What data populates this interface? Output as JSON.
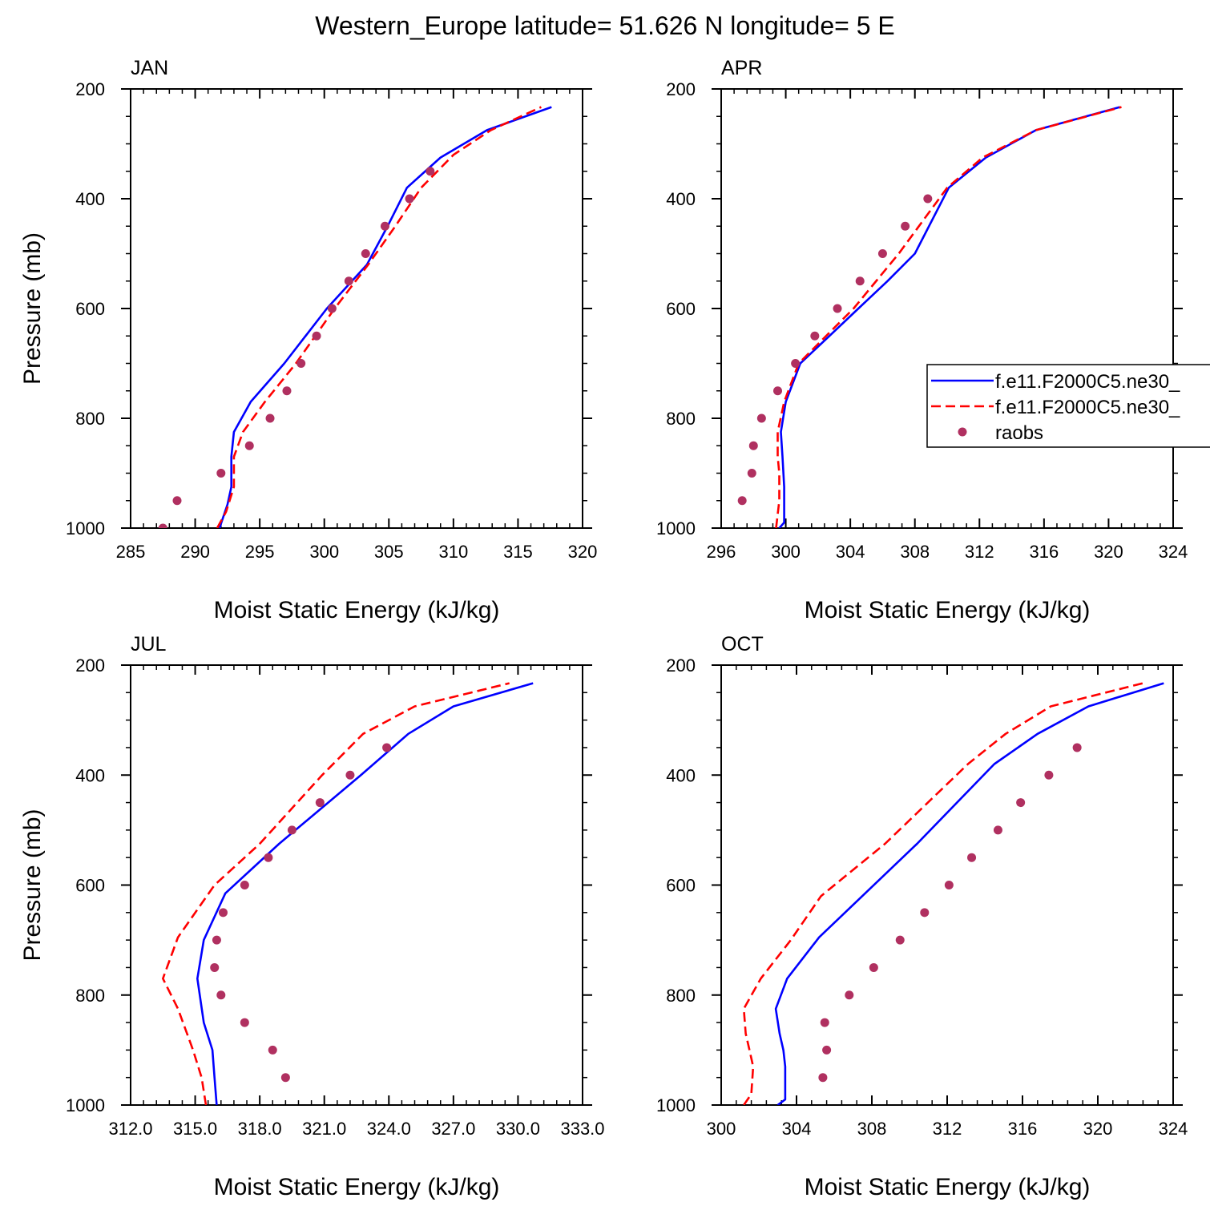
{
  "figure": {
    "title": "Western_Europe  latitude= 51.626 N longitude= 5 E",
    "colors": {
      "model_1": "#0000ff",
      "model_2": "#ff0000",
      "raobs": "#b03060"
    }
  },
  "chart_data": [
    {
      "type": "line",
      "panel": "JAN",
      "xlabel": "Moist Static Energy (kJ/kg)",
      "ylabel": "Pressure (mb)",
      "xlim": [
        285,
        320
      ],
      "ylim": [
        1000,
        200
      ],
      "y_inverted": true,
      "xticks": [
        "285",
        "290",
        "295",
        "300",
        "305",
        "310",
        "315",
        "320"
      ],
      "yticks": [
        "200",
        "400",
        "600",
        "800",
        "1000"
      ],
      "legend": null,
      "series": [
        {
          "name": "f.e11.F2000C5.ne30_",
          "style": "solid",
          "color": "#0000ff",
          "points": [
            [
              291.9,
              1000
            ],
            [
              292.0,
              992
            ],
            [
              292.5,
              957
            ],
            [
              292.8,
              925
            ],
            [
              292.8,
              870
            ],
            [
              293.0,
              825
            ],
            [
              294.3,
              770
            ],
            [
              296.9,
              700
            ],
            [
              300.2,
              600
            ],
            [
              303.3,
              520
            ],
            [
              304.9,
              450
            ],
            [
              306.4,
              380
            ],
            [
              309.0,
              325
            ],
            [
              312.6,
              275
            ],
            [
              317.6,
              233
            ]
          ]
        },
        {
          "name": "f.e11.F2000C5.ne30_",
          "style": "dashed",
          "color": "#ff0000",
          "points": [
            [
              291.7,
              1000
            ],
            [
              292.4,
              970
            ],
            [
              293.0,
              925
            ],
            [
              293.0,
              870
            ],
            [
              293.7,
              825
            ],
            [
              295.4,
              770
            ],
            [
              297.8,
              700
            ],
            [
              300.8,
              600
            ],
            [
              303.4,
              520
            ],
            [
              305.5,
              450
            ],
            [
              307.5,
              380
            ],
            [
              310.0,
              320
            ],
            [
              312.9,
              275
            ],
            [
              316.8,
              233
            ]
          ]
        },
        {
          "name": "raobs",
          "style": "markers",
          "color": "#b03060",
          "points": [
            [
              287.5,
              1000
            ],
            [
              288.6,
              950
            ],
            [
              292.0,
              900
            ],
            [
              294.2,
              850
            ],
            [
              295.8,
              800
            ],
            [
              297.1,
              750
            ],
            [
              298.2,
              700
            ],
            [
              299.4,
              650
            ],
            [
              300.6,
              600
            ],
            [
              301.9,
              550
            ],
            [
              303.2,
              500
            ],
            [
              304.7,
              450
            ],
            [
              306.6,
              400
            ],
            [
              308.2,
              350
            ]
          ]
        }
      ]
    },
    {
      "type": "line",
      "panel": "APR",
      "xlabel": "Moist Static Energy (kJ/kg)",
      "ylabel": "",
      "xlim": [
        296,
        324
      ],
      "ylim": [
        1000,
        200
      ],
      "y_inverted": true,
      "xticks": [
        "296",
        "300",
        "304",
        "308",
        "312",
        "316",
        "320",
        "324"
      ],
      "yticks": [
        "200",
        "400",
        "600",
        "800",
        "1000"
      ],
      "legend": {
        "placement": "right-middle",
        "entries": [
          {
            "label": "f.e11.F2000C5.ne30_",
            "style": "solid",
            "color": "#0000ff"
          },
          {
            "label": "f.e11.F2000C5.ne30_",
            "style": "dashed",
            "color": "#ff0000"
          },
          {
            "label": "raobs",
            "style": "markers",
            "color": "#b03060"
          }
        ]
      },
      "series": [
        {
          "name": "f.e11.F2000C5.ne30_",
          "style": "solid",
          "color": "#0000ff",
          "points": [
            [
              299.6,
              1000
            ],
            [
              299.9,
              990
            ],
            [
              299.9,
              925
            ],
            [
              299.8,
              870
            ],
            [
              299.7,
              825
            ],
            [
              300.0,
              770
            ],
            [
              300.9,
              700
            ],
            [
              302.7,
              650
            ],
            [
              304.5,
              600
            ],
            [
              306.3,
              550
            ],
            [
              308.0,
              500
            ],
            [
              310.1,
              380
            ],
            [
              312.4,
              325
            ],
            [
              315.5,
              275
            ],
            [
              320.7,
              233
            ]
          ]
        },
        {
          "name": "f.e11.F2000C5.ne30_",
          "style": "dashed",
          "color": "#ff0000",
          "points": [
            [
              299.4,
              1000
            ],
            [
              299.6,
              950
            ],
            [
              299.6,
              900
            ],
            [
              299.5,
              870
            ],
            [
              299.5,
              825
            ],
            [
              299.9,
              770
            ],
            [
              300.8,
              700
            ],
            [
              302.5,
              650
            ],
            [
              304.2,
              600
            ],
            [
              307.0,
              500
            ],
            [
              310.0,
              380
            ],
            [
              312.2,
              325
            ],
            [
              315.5,
              275
            ],
            [
              320.8,
              233
            ]
          ]
        },
        {
          "name": "raobs",
          "style": "markers",
          "color": "#b03060",
          "points": [
            [
              297.3,
              950
            ],
            [
              297.9,
              900
            ],
            [
              298.0,
              850
            ],
            [
              298.5,
              800
            ],
            [
              299.5,
              750
            ],
            [
              300.6,
              700
            ],
            [
              301.8,
              650
            ],
            [
              303.2,
              600
            ],
            [
              304.6,
              550
            ],
            [
              306.0,
              500
            ],
            [
              307.4,
              450
            ],
            [
              308.8,
              400
            ]
          ]
        }
      ]
    },
    {
      "type": "line",
      "panel": "JUL",
      "xlabel": "Moist Static Energy (kJ/kg)",
      "ylabel": "Pressure (mb)",
      "xlim": [
        312,
        333
      ],
      "ylim": [
        1000,
        200
      ],
      "y_inverted": true,
      "xticks": [
        "312.0",
        "315.0",
        "318.0",
        "321.0",
        "324.0",
        "327.0",
        "330.0",
        "333.0"
      ],
      "yticks": [
        "200",
        "400",
        "600",
        "800",
        "1000"
      ],
      "legend": null,
      "series": [
        {
          "name": "f.e11.F2000C5.ne30_",
          "style": "solid",
          "color": "#0000ff",
          "points": [
            [
              316.0,
              1000
            ],
            [
              315.9,
              950
            ],
            [
              315.8,
              900
            ],
            [
              315.4,
              850
            ],
            [
              315.1,
              770
            ],
            [
              315.4,
              700
            ],
            [
              316.4,
              615
            ],
            [
              318.9,
              525
            ],
            [
              322.7,
              400
            ],
            [
              324.9,
              325
            ],
            [
              327.0,
              275
            ],
            [
              330.7,
              233
            ]
          ]
        },
        {
          "name": "f.e11.F2000C5.ne30_",
          "style": "dashed",
          "color": "#ff0000",
          "points": [
            [
              315.5,
              1000
            ],
            [
              315.3,
              950
            ],
            [
              314.9,
              900
            ],
            [
              314.2,
              825
            ],
            [
              313.5,
              770
            ],
            [
              314.2,
              695
            ],
            [
              315.9,
              600
            ],
            [
              318.0,
              525
            ],
            [
              320.9,
              400
            ],
            [
              322.8,
              325
            ],
            [
              325.2,
              275
            ],
            [
              329.6,
              233
            ]
          ]
        },
        {
          "name": "raobs",
          "style": "markers",
          "color": "#b03060",
          "points": [
            [
              319.2,
              950
            ],
            [
              318.6,
              900
            ],
            [
              317.3,
              850
            ],
            [
              316.2,
              800
            ],
            [
              315.9,
              750
            ],
            [
              316.0,
              700
            ],
            [
              316.3,
              650
            ],
            [
              317.3,
              600
            ],
            [
              318.4,
              550
            ],
            [
              319.5,
              500
            ],
            [
              320.8,
              450
            ],
            [
              322.2,
              400
            ],
            [
              323.9,
              350
            ]
          ]
        }
      ]
    },
    {
      "type": "line",
      "panel": "OCT",
      "xlabel": "Moist Static Energy (kJ/kg)",
      "ylabel": "",
      "xlim": [
        300,
        324
      ],
      "ylim": [
        1000,
        200
      ],
      "y_inverted": true,
      "xticks": [
        "300",
        "304",
        "308",
        "312",
        "316",
        "320",
        "324"
      ],
      "yticks": [
        "200",
        "400",
        "600",
        "800",
        "1000"
      ],
      "legend": null,
      "series": [
        {
          "name": "f.e11.F2000C5.ne30_",
          "style": "solid",
          "color": "#0000ff",
          "points": [
            [
              303.0,
              1000
            ],
            [
              303.4,
              990
            ],
            [
              303.4,
              930
            ],
            [
              303.3,
              900
            ],
            [
              303.1,
              870
            ],
            [
              302.9,
              825
            ],
            [
              303.5,
              770
            ],
            [
              305.2,
              695
            ],
            [
              310.4,
              525
            ],
            [
              314.5,
              380
            ],
            [
              316.8,
              325
            ],
            [
              319.5,
              275
            ],
            [
              323.5,
              233
            ]
          ]
        },
        {
          "name": "f.e11.F2000C5.ne30_",
          "style": "dashed",
          "color": "#ff0000",
          "points": [
            [
              301.2,
              1000
            ],
            [
              301.6,
              980
            ],
            [
              301.7,
              930
            ],
            [
              301.5,
              900
            ],
            [
              301.3,
              870
            ],
            [
              301.2,
              825
            ],
            [
              302.1,
              770
            ],
            [
              303.7,
              700
            ],
            [
              305.3,
              620
            ],
            [
              308.7,
              525
            ],
            [
              313.1,
              380
            ],
            [
              315.1,
              325
            ],
            [
              317.5,
              275
            ],
            [
              322.4,
              233
            ]
          ]
        },
        {
          "name": "raobs",
          "style": "markers",
          "color": "#b03060",
          "points": [
            [
              305.4,
              950
            ],
            [
              305.6,
              900
            ],
            [
              305.5,
              850
            ],
            [
              306.8,
              800
            ],
            [
              308.1,
              750
            ],
            [
              309.5,
              700
            ],
            [
              310.8,
              650
            ],
            [
              312.1,
              600
            ],
            [
              313.3,
              550
            ],
            [
              314.7,
              500
            ],
            [
              315.9,
              450
            ],
            [
              317.4,
              400
            ],
            [
              318.9,
              350
            ]
          ]
        }
      ]
    }
  ]
}
